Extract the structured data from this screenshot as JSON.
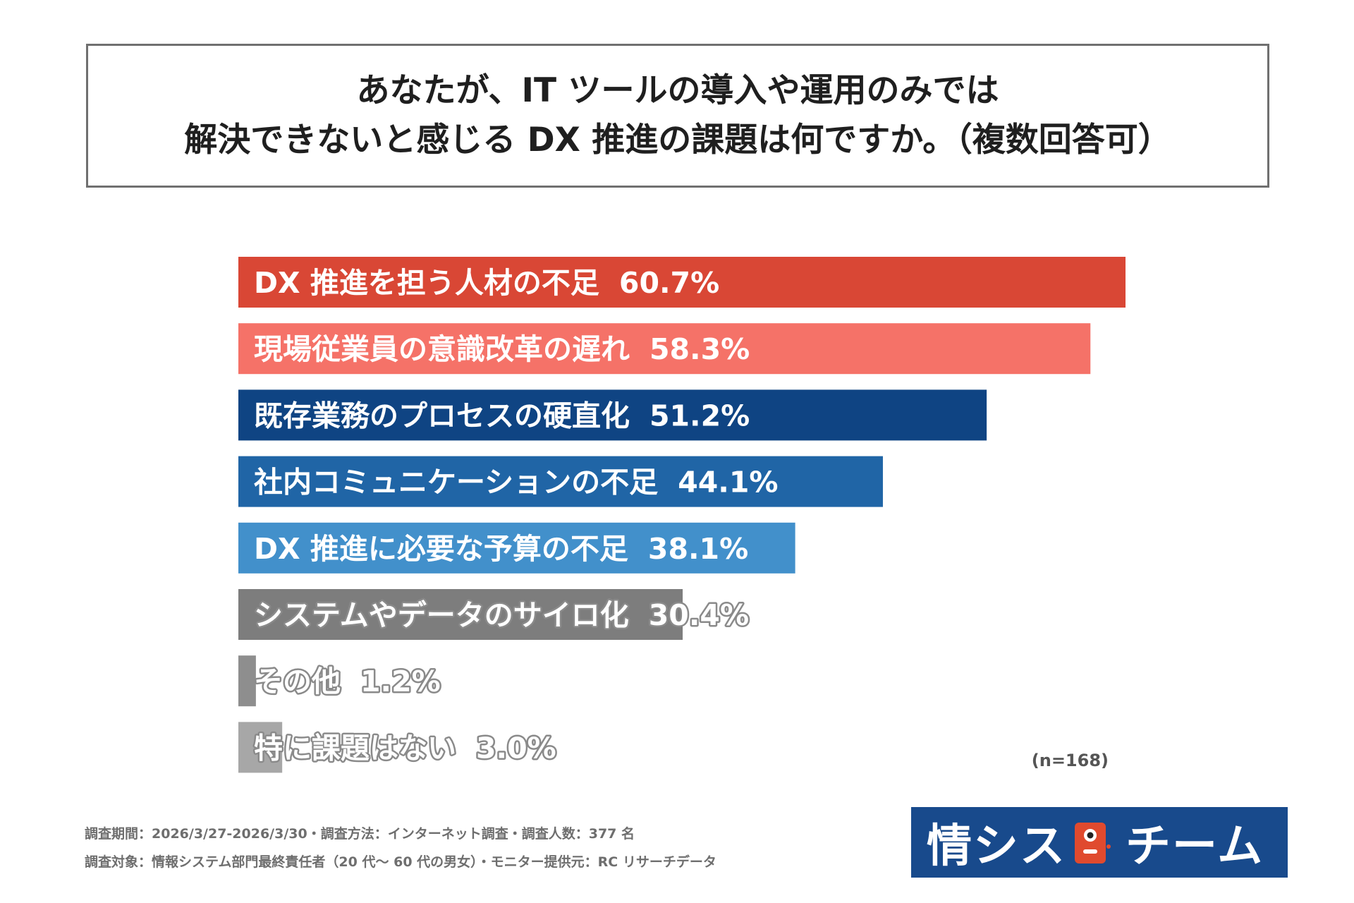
{
  "title": {
    "line1": "あなたが、IT ツールの導入や運用のみでは",
    "line2": "解決できないと感じる DX 推進の課題は何ですか。（複数回答可）"
  },
  "chart_data": {
    "type": "bar",
    "orientation": "horizontal",
    "title": "あなたが、IT ツールの導入や運用のみでは解決できないと感じる DX 推進の課題は何ですか。（複数回答可）",
    "unit": "%",
    "xlim": [
      0,
      60.7
    ],
    "categories": [
      "DX 推進を担う人材の不足",
      "現場従業員の意識改革の遅れ",
      "既存業務のプロセスの硬直化",
      "社内コミュニケーションの不足",
      "DX 推進に必要な予算の不足",
      "システムやデータのサイロ化",
      "その他",
      "特に課題はない"
    ],
    "values": [
      60.7,
      58.3,
      51.2,
      44.1,
      38.1,
      30.4,
      1.2,
      3.0
    ],
    "value_labels": [
      "60.7%",
      "58.3%",
      "51.2%",
      "44.1%",
      "38.1%",
      "30.4%",
      "1.2%",
      "3.0%"
    ],
    "colors": [
      "#d94735",
      "#f57268",
      "#0f4483",
      "#2065a6",
      "#4290cb",
      "#7d7d7d",
      "#8e8e8e",
      "#a7a7a7"
    ],
    "outlined_labels": [
      false,
      false,
      false,
      false,
      false,
      true,
      true,
      true
    ]
  },
  "sample_size": "(n=168)",
  "footer": {
    "line1": "調査期間：2026/3/27-2026/3/30・調査方法：インターネット調査・調査人数：377 名",
    "line2": "調査対象：情報システム部門最終責任者（20 代〜 60 代の男女）・モニター提供元：RC リサーチデータ"
  },
  "logo": {
    "text_left": "情シス",
    "text_right": "チーム",
    "background": "#184a8c",
    "mascot_color": "#e04a2e"
  }
}
